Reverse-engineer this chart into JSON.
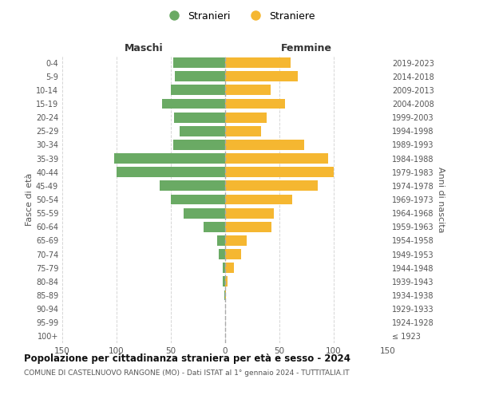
{
  "age_groups": [
    "100+",
    "95-99",
    "90-94",
    "85-89",
    "80-84",
    "75-79",
    "70-74",
    "65-69",
    "60-64",
    "55-59",
    "50-54",
    "45-49",
    "40-44",
    "35-39",
    "30-34",
    "25-29",
    "20-24",
    "15-19",
    "10-14",
    "5-9",
    "0-4"
  ],
  "birth_years": [
    "≤ 1923",
    "1924-1928",
    "1929-1933",
    "1934-1938",
    "1939-1943",
    "1944-1948",
    "1949-1953",
    "1954-1958",
    "1959-1963",
    "1964-1968",
    "1969-1973",
    "1974-1978",
    "1979-1983",
    "1984-1988",
    "1989-1993",
    "1994-1998",
    "1999-2003",
    "2004-2008",
    "2009-2013",
    "2014-2018",
    "2019-2023"
  ],
  "maschi": [
    0,
    0,
    0,
    1,
    2,
    2,
    6,
    7,
    20,
    38,
    50,
    60,
    100,
    102,
    48,
    42,
    47,
    58,
    50,
    46,
    48
  ],
  "femmine": [
    0,
    0,
    0,
    1,
    2,
    8,
    15,
    20,
    43,
    45,
    62,
    85,
    100,
    95,
    73,
    33,
    38,
    55,
    42,
    67,
    60
  ],
  "male_color": "#6aaa64",
  "female_color": "#f5b731",
  "title": "Popolazione per cittadinanza straniera per età e sesso - 2024",
  "subtitle": "COMUNE DI CASTELNUOVO RANGONE (MO) - Dati ISTAT al 1° gennaio 2024 - TUTTITALIA.IT",
  "legend_male": "Stranieri",
  "legend_female": "Straniere",
  "xlabel_left": "Maschi",
  "xlabel_right": "Femmine",
  "ylabel_left": "Fasce di età",
  "ylabel_right": "Anni di nascita",
  "xlim": 150,
  "bg_color": "#ffffff",
  "grid_color": "#cccccc"
}
